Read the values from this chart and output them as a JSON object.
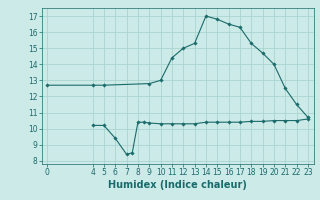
{
  "title": "",
  "xlabel": "Humidex (Indice chaleur)",
  "ylabel": "",
  "bg_color": "#cceae7",
  "grid_color": "#aad4d0",
  "line_color": "#1a6b6b",
  "line1_x": [
    0,
    4,
    5,
    9,
    10,
    11,
    12,
    13,
    14,
    15,
    16,
    17,
    18,
    19,
    20,
    21,
    22,
    23
  ],
  "line1_y": [
    12.7,
    12.7,
    12.7,
    12.8,
    13.0,
    14.4,
    15.0,
    15.3,
    17.0,
    16.8,
    16.5,
    16.3,
    15.3,
    14.7,
    14.0,
    12.5,
    11.5,
    10.7
  ],
  "line2_x": [
    4,
    5,
    6,
    7,
    7.5,
    8,
    8.5,
    9,
    10,
    11,
    12,
    13,
    14,
    15,
    16,
    17,
    18,
    19,
    20,
    21,
    22,
    23
  ],
  "line2_y": [
    10.2,
    10.2,
    9.4,
    8.4,
    8.5,
    10.4,
    10.4,
    10.35,
    10.3,
    10.3,
    10.3,
    10.3,
    10.4,
    10.4,
    10.4,
    10.4,
    10.45,
    10.45,
    10.5,
    10.5,
    10.5,
    10.6
  ],
  "xlim": [
    -0.5,
    23.5
  ],
  "ylim": [
    7.8,
    17.5
  ],
  "yticks": [
    8,
    9,
    10,
    11,
    12,
    13,
    14,
    15,
    16,
    17
  ],
  "xticks": [
    0,
    4,
    5,
    6,
    7,
    8,
    9,
    10,
    11,
    12,
    13,
    14,
    15,
    16,
    17,
    18,
    19,
    20,
    21,
    22,
    23
  ],
  "tick_fontsize": 5.5,
  "xlabel_fontsize": 7,
  "marker": "D",
  "marker_size": 1.8
}
